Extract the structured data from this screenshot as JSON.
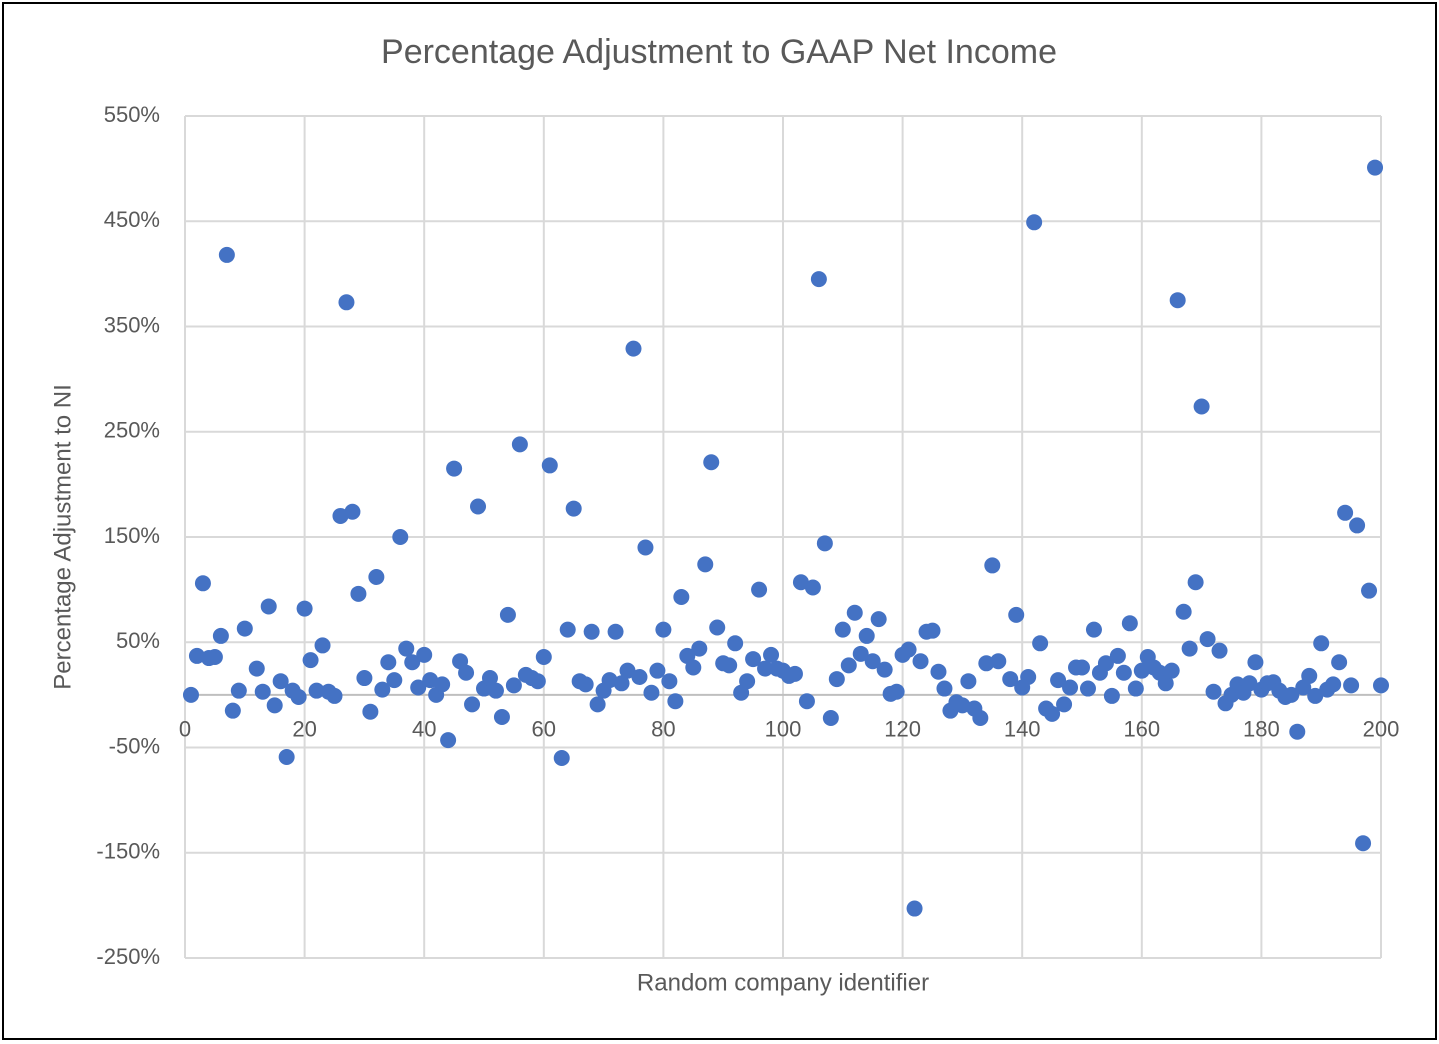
{
  "chart_data": {
    "type": "scatter",
    "title": "Percentage Adjustment to GAAP Net Income",
    "xlabel": "Random company identifier",
    "ylabel": "Percentage Adjustment to NI",
    "color": "#4472c4",
    "grid": true,
    "xlim": [
      0,
      200
    ],
    "xticks": [
      0,
      20,
      40,
      60,
      80,
      100,
      120,
      140,
      160,
      180,
      200
    ],
    "ylim": [
      -250,
      550
    ],
    "yticks": [
      {
        "value": -250,
        "label": "-250%"
      },
      {
        "value": -150,
        "label": "-150%"
      },
      {
        "value": -50,
        "label": "-50%"
      },
      {
        "value": 50,
        "label": "50%"
      },
      {
        "value": 150,
        "label": "150%"
      },
      {
        "value": 250,
        "label": "250%"
      },
      {
        "value": 350,
        "label": "350%"
      },
      {
        "value": 450,
        "label": "450%"
      },
      {
        "value": 550,
        "label": "550%"
      }
    ],
    "x": [
      1,
      2,
      3,
      4,
      5,
      6,
      7,
      8,
      9,
      10,
      12,
      13,
      14,
      15,
      16,
      17,
      18,
      19,
      20,
      21,
      22,
      23,
      24,
      25,
      26,
      27,
      28,
      29,
      30,
      31,
      32,
      33,
      34,
      35,
      36,
      37,
      38,
      39,
      40,
      41,
      42,
      43,
      44,
      45,
      46,
      47,
      48,
      49,
      50,
      51,
      52,
      53,
      54,
      55,
      56,
      57,
      58,
      59,
      60,
      61,
      63,
      64,
      65,
      66,
      67,
      68,
      69,
      70,
      71,
      72,
      73,
      74,
      75,
      76,
      77,
      78,
      79,
      80,
      81,
      82,
      83,
      84,
      85,
      86,
      87,
      88,
      89,
      90,
      91,
      92,
      93,
      94,
      95,
      96,
      97,
      98,
      99,
      100,
      101,
      102,
      103,
      104,
      105,
      106,
      107,
      108,
      109,
      110,
      111,
      112,
      113,
      114,
      115,
      116,
      117,
      118,
      119,
      120,
      121,
      122,
      123,
      124,
      125,
      126,
      127,
      128,
      129,
      130,
      131,
      132,
      133,
      134,
      135,
      136,
      138,
      139,
      140,
      141,
      142,
      143,
      144,
      145,
      146,
      147,
      148,
      149,
      150,
      151,
      152,
      153,
      154,
      155,
      156,
      157,
      158,
      159,
      160,
      161,
      162,
      163,
      164,
      165,
      166,
      167,
      168,
      169,
      170,
      171,
      172,
      173,
      174,
      175,
      176,
      177,
      178,
      179,
      180,
      181,
      182,
      183,
      184,
      185,
      186,
      187,
      188,
      189,
      190,
      191,
      192,
      193,
      194,
      195,
      196,
      197,
      198,
      199,
      200
    ],
    "values": [
      0,
      37,
      106,
      35,
      36,
      56,
      418,
      -15,
      4,
      63,
      25,
      3,
      84,
      -10,
      13,
      -59,
      4,
      -2,
      82,
      33,
      4,
      47,
      3,
      -1,
      170,
      373,
      174,
      96,
      16,
      -16,
      112,
      5,
      31,
      14,
      150,
      44,
      31,
      7,
      38,
      14,
      0,
      10,
      -43,
      215,
      32,
      21,
      -9,
      179,
      6,
      16,
      4,
      -21,
      76,
      9,
      238,
      19,
      16,
      13,
      36,
      218,
      -60,
      62,
      177,
      13,
      10,
      60,
      -9,
      4,
      14,
      60,
      11,
      23,
      329,
      17,
      140,
      2,
      23,
      62,
      13,
      -6,
      93,
      37,
      26,
      44,
      124,
      221,
      64,
      30,
      28,
      49,
      2,
      13,
      34,
      100,
      25,
      38,
      25,
      23,
      18,
      20,
      107,
      -6,
      102,
      395,
      144,
      -22,
      15,
      62,
      28,
      78,
      39,
      56,
      32,
      72,
      24,
      1,
      3,
      38,
      43,
      -203,
      32,
      60,
      61,
      22,
      6,
      -15,
      -7,
      -10,
      13,
      -13,
      -22,
      30,
      123,
      32,
      15,
      76,
      7,
      17,
      449,
      49,
      -13,
      -18,
      14,
      -9,
      7,
      26,
      26,
      6,
      62,
      21,
      30,
      -1,
      37,
      21,
      68,
      6,
      23,
      36,
      26,
      21,
      11,
      23,
      375,
      79,
      44,
      107,
      274,
      53,
      3,
      42,
      -8,
      0,
      10,
      2,
      11,
      31,
      5,
      11,
      12,
      4,
      -2,
      0,
      -35,
      7,
      18,
      -1,
      49,
      5,
      10,
      31,
      173,
      9,
      161,
      -141,
      99,
      501,
      9
    ]
  }
}
